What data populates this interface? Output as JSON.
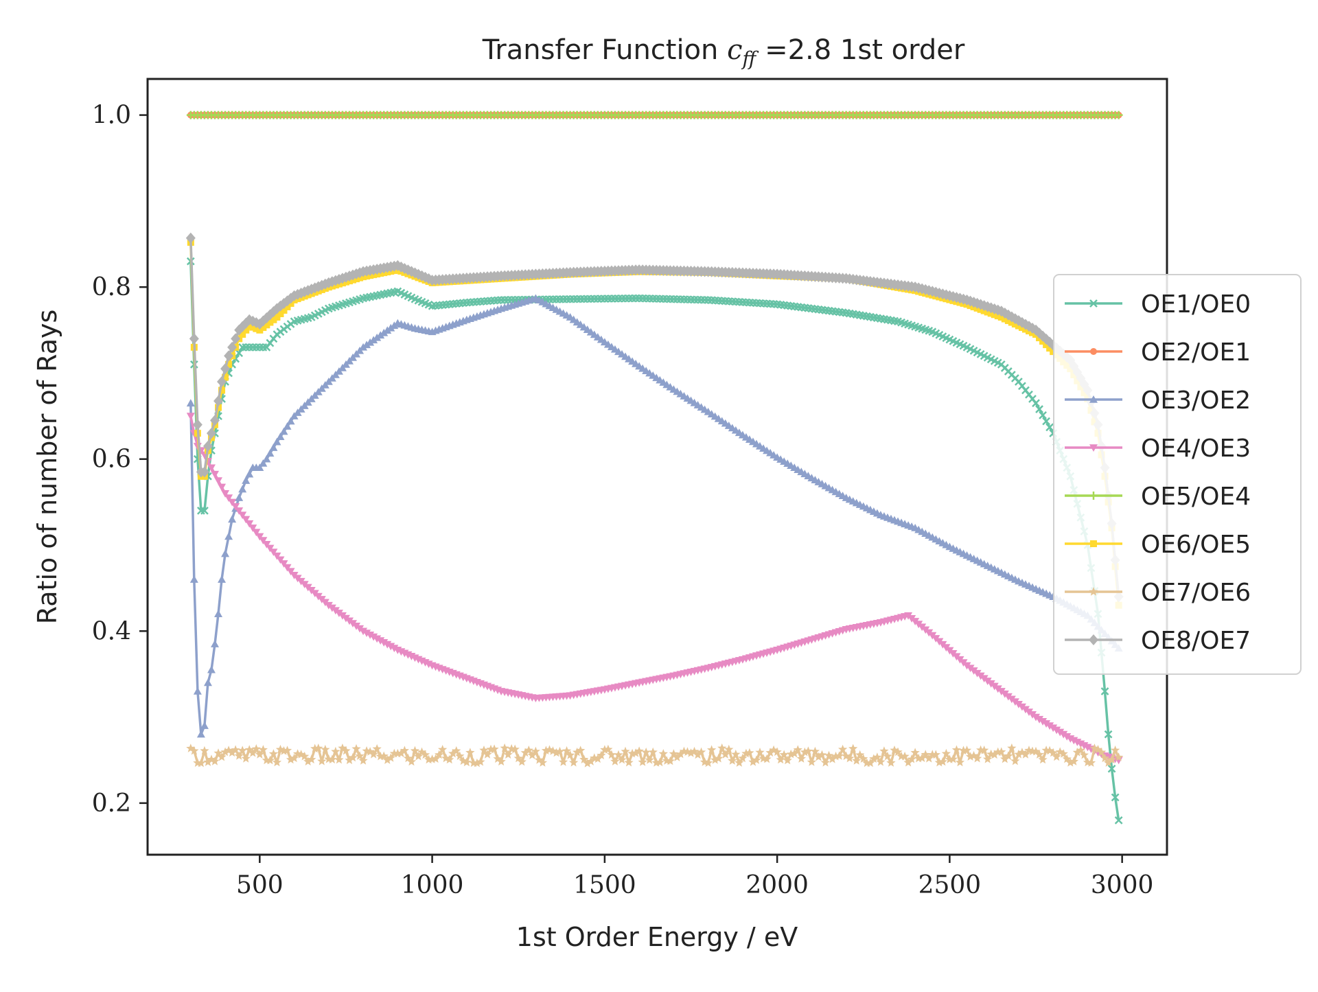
{
  "chart_data": {
    "type": "line",
    "title_main": "Transfer Function ",
    "title_math": "c",
    "title_math_sub": "ff",
    "title_rest": " =2.8 1st order",
    "xlabel": "1st Order Energy / eV",
    "ylabel": "Ratio of number of Rays",
    "xlim": [
      175,
      3130
    ],
    "ylim": [
      0.14,
      1.042
    ],
    "xticks": [
      500,
      1000,
      1500,
      2000,
      2500,
      3000
    ],
    "xtick_labels": [
      "500",
      "1000",
      "1500",
      "2000",
      "2500",
      "3000"
    ],
    "yticks": [
      0.2,
      0.4,
      0.6,
      0.8,
      1.0
    ],
    "ytick_labels": [
      "0.2",
      "0.4",
      "0.6",
      "0.8",
      "1.0"
    ],
    "grid": false,
    "legend_position": "right",
    "x_range": [
      300,
      2990
    ],
    "series": [
      {
        "name": "OE1/OE0",
        "color": "#66c2a5",
        "marker": "x",
        "points": [
          [
            300,
            0.83
          ],
          [
            310,
            0.71
          ],
          [
            320,
            0.6
          ],
          [
            330,
            0.54
          ],
          [
            340,
            0.54
          ],
          [
            350,
            0.58
          ],
          [
            360,
            0.61
          ],
          [
            370,
            0.63
          ],
          [
            380,
            0.65
          ],
          [
            390,
            0.67
          ],
          [
            400,
            0.69
          ],
          [
            420,
            0.71
          ],
          [
            450,
            0.73
          ],
          [
            480,
            0.73
          ],
          [
            500,
            0.73
          ],
          [
            520,
            0.73
          ],
          [
            550,
            0.745
          ],
          [
            600,
            0.76
          ],
          [
            650,
            0.765
          ],
          [
            700,
            0.775
          ],
          [
            800,
            0.787
          ],
          [
            900,
            0.795
          ],
          [
            950,
            0.786
          ],
          [
            1000,
            0.778
          ],
          [
            1100,
            0.782
          ],
          [
            1200,
            0.785
          ],
          [
            1400,
            0.786
          ],
          [
            1600,
            0.787
          ],
          [
            1800,
            0.785
          ],
          [
            2000,
            0.78
          ],
          [
            2200,
            0.77
          ],
          [
            2350,
            0.76
          ],
          [
            2450,
            0.748
          ],
          [
            2550,
            0.73
          ],
          [
            2650,
            0.71
          ],
          [
            2700,
            0.69
          ],
          [
            2750,
            0.665
          ],
          [
            2800,
            0.63
          ],
          [
            2850,
            0.58
          ],
          [
            2900,
            0.5
          ],
          [
            2930,
            0.42
          ],
          [
            2950,
            0.33
          ],
          [
            2960,
            0.28
          ],
          [
            2975,
            0.22
          ],
          [
            2990,
            0.18
          ]
        ]
      },
      {
        "name": "OE2/OE1",
        "color": "#fc8d62",
        "marker": "circle",
        "points": [
          [
            300,
            1.0
          ],
          [
            2990,
            1.0
          ]
        ]
      },
      {
        "name": "OE3/OE2",
        "color": "#8da0cb",
        "marker": "triangle-up",
        "points": [
          [
            300,
            0.665
          ],
          [
            310,
            0.46
          ],
          [
            320,
            0.33
          ],
          [
            330,
            0.28
          ],
          [
            340,
            0.29
          ],
          [
            350,
            0.34
          ],
          [
            360,
            0.355
          ],
          [
            370,
            0.385
          ],
          [
            380,
            0.42
          ],
          [
            390,
            0.46
          ],
          [
            400,
            0.49
          ],
          [
            420,
            0.53
          ],
          [
            440,
            0.555
          ],
          [
            460,
            0.575
          ],
          [
            480,
            0.59
          ],
          [
            500,
            0.59
          ],
          [
            520,
            0.6
          ],
          [
            550,
            0.62
          ],
          [
            600,
            0.65
          ],
          [
            650,
            0.67
          ],
          [
            700,
            0.69
          ],
          [
            800,
            0.73
          ],
          [
            900,
            0.758
          ],
          [
            950,
            0.752
          ],
          [
            1000,
            0.748
          ],
          [
            1100,
            0.762
          ],
          [
            1200,
            0.775
          ],
          [
            1300,
            0.787
          ],
          [
            1400,
            0.765
          ],
          [
            1500,
            0.736
          ],
          [
            1600,
            0.708
          ],
          [
            1700,
            0.681
          ],
          [
            1800,
            0.655
          ],
          [
            1900,
            0.628
          ],
          [
            2000,
            0.602
          ],
          [
            2100,
            0.578
          ],
          [
            2200,
            0.555
          ],
          [
            2300,
            0.535
          ],
          [
            2400,
            0.52
          ],
          [
            2500,
            0.498
          ],
          [
            2600,
            0.478
          ],
          [
            2700,
            0.458
          ],
          [
            2800,
            0.44
          ],
          [
            2900,
            0.418
          ],
          [
            2990,
            0.38
          ]
        ]
      },
      {
        "name": "OE4/OE3",
        "color": "#e78ac3",
        "marker": "triangle-down",
        "points": [
          [
            300,
            0.65
          ],
          [
            310,
            0.63
          ],
          [
            320,
            0.615
          ],
          [
            340,
            0.605
          ],
          [
            360,
            0.59
          ],
          [
            380,
            0.575
          ],
          [
            400,
            0.56
          ],
          [
            450,
            0.535
          ],
          [
            500,
            0.51
          ],
          [
            600,
            0.465
          ],
          [
            700,
            0.43
          ],
          [
            800,
            0.4
          ],
          [
            900,
            0.378
          ],
          [
            1000,
            0.36
          ],
          [
            1100,
            0.345
          ],
          [
            1200,
            0.33
          ],
          [
            1300,
            0.322
          ],
          [
            1400,
            0.325
          ],
          [
            1500,
            0.332
          ],
          [
            1600,
            0.34
          ],
          [
            1700,
            0.348
          ],
          [
            1800,
            0.357
          ],
          [
            1900,
            0.367
          ],
          [
            2000,
            0.378
          ],
          [
            2100,
            0.39
          ],
          [
            2200,
            0.402
          ],
          [
            2300,
            0.41
          ],
          [
            2380,
            0.418
          ],
          [
            2450,
            0.395
          ],
          [
            2550,
            0.36
          ],
          [
            2650,
            0.33
          ],
          [
            2750,
            0.3
          ],
          [
            2850,
            0.275
          ],
          [
            2950,
            0.255
          ],
          [
            2990,
            0.25
          ]
        ]
      },
      {
        "name": "OE5/OE4",
        "color": "#a6d854",
        "marker": "plus",
        "points": [
          [
            300,
            1.0
          ],
          [
            2990,
            1.0
          ]
        ]
      },
      {
        "name": "OE6/OE5",
        "color": "#ffd92f",
        "marker": "square",
        "points": [
          [
            300,
            0.852
          ],
          [
            310,
            0.73
          ],
          [
            320,
            0.63
          ],
          [
            330,
            0.58
          ],
          [
            340,
            0.58
          ],
          [
            350,
            0.61
          ],
          [
            370,
            0.64
          ],
          [
            390,
            0.68
          ],
          [
            410,
            0.71
          ],
          [
            440,
            0.74
          ],
          [
            470,
            0.755
          ],
          [
            500,
            0.75
          ],
          [
            550,
            0.765
          ],
          [
            600,
            0.785
          ],
          [
            700,
            0.8
          ],
          [
            800,
            0.812
          ],
          [
            900,
            0.82
          ],
          [
            1000,
            0.805
          ],
          [
            1200,
            0.81
          ],
          [
            1400,
            0.815
          ],
          [
            1600,
            0.818
          ],
          [
            1800,
            0.817
          ],
          [
            2000,
            0.813
          ],
          [
            2200,
            0.81
          ],
          [
            2400,
            0.796
          ],
          [
            2550,
            0.78
          ],
          [
            2650,
            0.765
          ],
          [
            2750,
            0.745
          ],
          [
            2850,
            0.705
          ],
          [
            2900,
            0.67
          ],
          [
            2930,
            0.63
          ],
          [
            2950,
            0.58
          ],
          [
            2970,
            0.52
          ],
          [
            2990,
            0.43
          ]
        ]
      },
      {
        "name": "OE7/OE6",
        "color": "#e5c494",
        "marker": "star",
        "noisy": true,
        "base": 0.255,
        "amplitude": 0.009,
        "points": [
          [
            300,
            0.255
          ],
          [
            2990,
            0.255
          ]
        ]
      },
      {
        "name": "OE8/OE7",
        "color": "#b3b3b3",
        "marker": "diamond",
        "points": [
          [
            300,
            0.857
          ],
          [
            310,
            0.74
          ],
          [
            320,
            0.64
          ],
          [
            330,
            0.585
          ],
          [
            340,
            0.585
          ],
          [
            350,
            0.615
          ],
          [
            370,
            0.645
          ],
          [
            390,
            0.69
          ],
          [
            410,
            0.72
          ],
          [
            440,
            0.75
          ],
          [
            470,
            0.762
          ],
          [
            500,
            0.757
          ],
          [
            550,
            0.775
          ],
          [
            600,
            0.79
          ],
          [
            700,
            0.805
          ],
          [
            800,
            0.818
          ],
          [
            900,
            0.825
          ],
          [
            1000,
            0.808
          ],
          [
            1200,
            0.813
          ],
          [
            1400,
            0.817
          ],
          [
            1600,
            0.82
          ],
          [
            1800,
            0.818
          ],
          [
            2000,
            0.815
          ],
          [
            2200,
            0.81
          ],
          [
            2400,
            0.8
          ],
          [
            2550,
            0.785
          ],
          [
            2650,
            0.772
          ],
          [
            2750,
            0.75
          ],
          [
            2850,
            0.715
          ],
          [
            2900,
            0.68
          ],
          [
            2930,
            0.64
          ],
          [
            2950,
            0.59
          ],
          [
            2970,
            0.525
          ],
          [
            2990,
            0.44
          ]
        ]
      }
    ]
  }
}
